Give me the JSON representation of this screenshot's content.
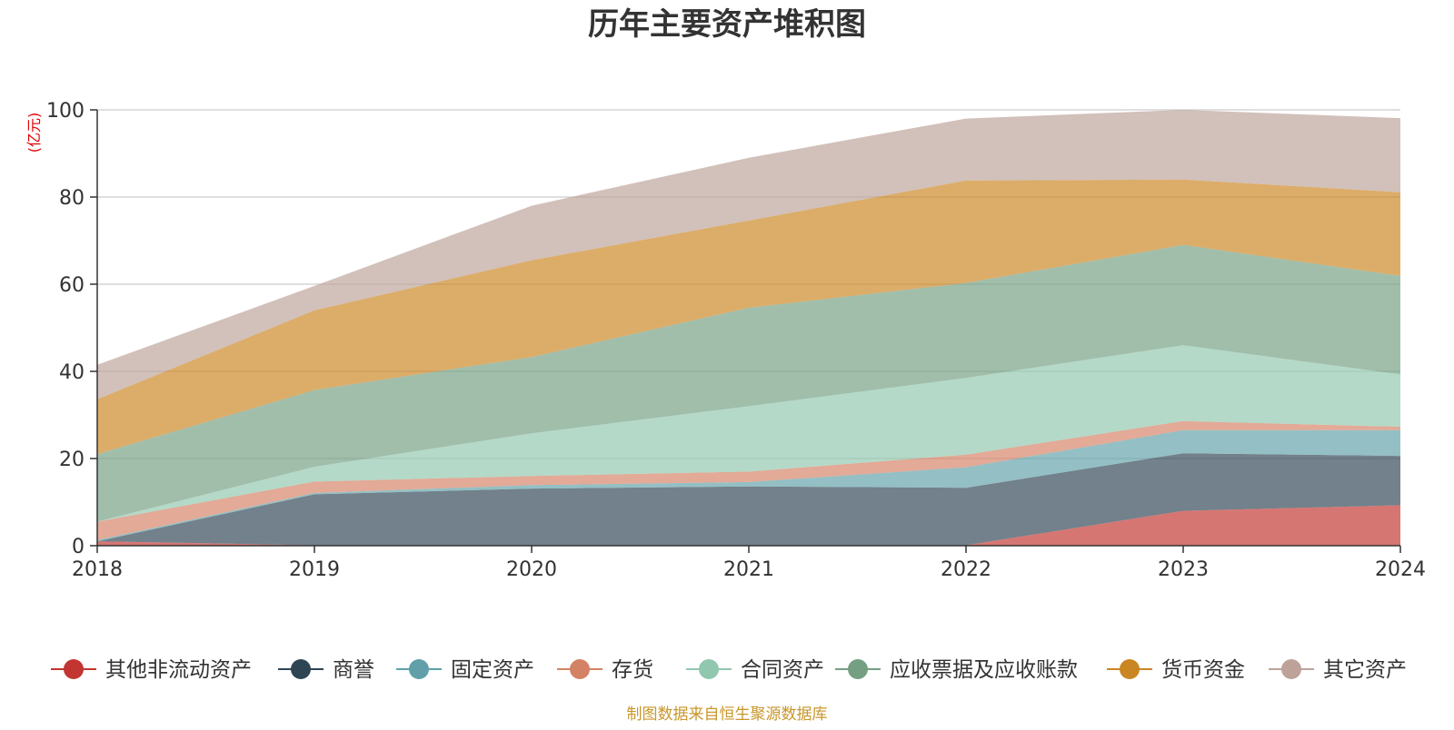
{
  "chart_data": {
    "type": "area",
    "stacked": true,
    "title": "历年主要资产堆积图",
    "ylabel": "(亿元)",
    "ylim": [
      0,
      100
    ],
    "yticks": [
      "0",
      "20",
      "40",
      "60",
      "80",
      "100"
    ],
    "categories": [
      "2018",
      "2019",
      "2020",
      "2021",
      "2022",
      "2023",
      "2024"
    ],
    "legend_position": "bottom",
    "grid": true,
    "source": "制图数据来自恒生聚源数据库",
    "series": [
      {
        "name": "其他非流动资产",
        "color": "#c23531",
        "values": [
          1.0,
          0.1,
          0.1,
          0.1,
          0.1,
          8.0,
          9.3
        ]
      },
      {
        "name": "商誉",
        "color": "#2f4554",
        "values": [
          0.0,
          11.7,
          13.0,
          13.5,
          13.2,
          13.2,
          11.3
        ]
      },
      {
        "name": "固定资产",
        "color": "#61a0a8",
        "values": [
          0.3,
          0.3,
          0.8,
          1.0,
          4.7,
          5.3,
          5.9
        ]
      },
      {
        "name": "存货",
        "color": "#d48265",
        "values": [
          4.2,
          2.6,
          2.1,
          2.4,
          2.9,
          2.1,
          0.8
        ]
      },
      {
        "name": "合同资产",
        "color": "#91c7ae",
        "values": [
          0.0,
          3.4,
          9.8,
          15.0,
          17.6,
          17.4,
          12.0
        ]
      },
      {
        "name": "应收票据及应收账款",
        "color": "#749f83",
        "values": [
          15.5,
          17.6,
          17.5,
          22.6,
          21.8,
          23.0,
          22.6
        ]
      },
      {
        "name": "货币资金",
        "color": "#ca8622",
        "values": [
          12.6,
          18.3,
          22.2,
          20.0,
          23.5,
          15.0,
          19.2
        ]
      },
      {
        "name": "其它资产",
        "color": "#bda29a",
        "values": [
          7.9,
          5.6,
          12.5,
          14.4,
          14.2,
          16.0,
          17.0
        ]
      }
    ]
  }
}
